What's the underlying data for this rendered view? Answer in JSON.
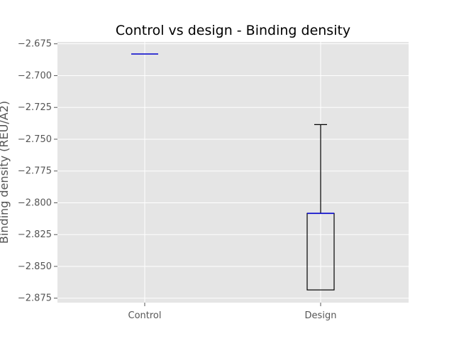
{
  "chart_data": {
    "type": "box",
    "title": "Control vs design - Binding density",
    "xlabel": "",
    "ylabel": "Binding density (REU/A2)",
    "categories": [
      "Control",
      "Design"
    ],
    "ylim": [
      -2.8785,
      -2.6735
    ],
    "yticks": [
      -2.675,
      -2.7,
      -2.725,
      -2.75,
      -2.775,
      -2.8,
      -2.825,
      -2.85,
      -2.875
    ],
    "ytick_labels": [
      "−2.675",
      "−2.700",
      "−2.725",
      "−2.750",
      "−2.775",
      "−2.800",
      "−2.825",
      "−2.850",
      "−2.875"
    ],
    "grid": true,
    "series": [
      {
        "category": "Control",
        "whisker_low": -2.683,
        "q1": -2.683,
        "median": -2.683,
        "q3": -2.683,
        "whisker_high": -2.683
      },
      {
        "category": "Design",
        "whisker_low": -2.8685,
        "q1": -2.8685,
        "median": -2.8083,
        "q3": -2.8083,
        "whisker_high": -2.7385
      }
    ],
    "colors": {
      "plot_background": "#e5e5e5",
      "grid": "#ffffff",
      "box": "#000000",
      "median": "#0000cc",
      "tick_text": "#555555",
      "title_text": "#000000"
    }
  }
}
